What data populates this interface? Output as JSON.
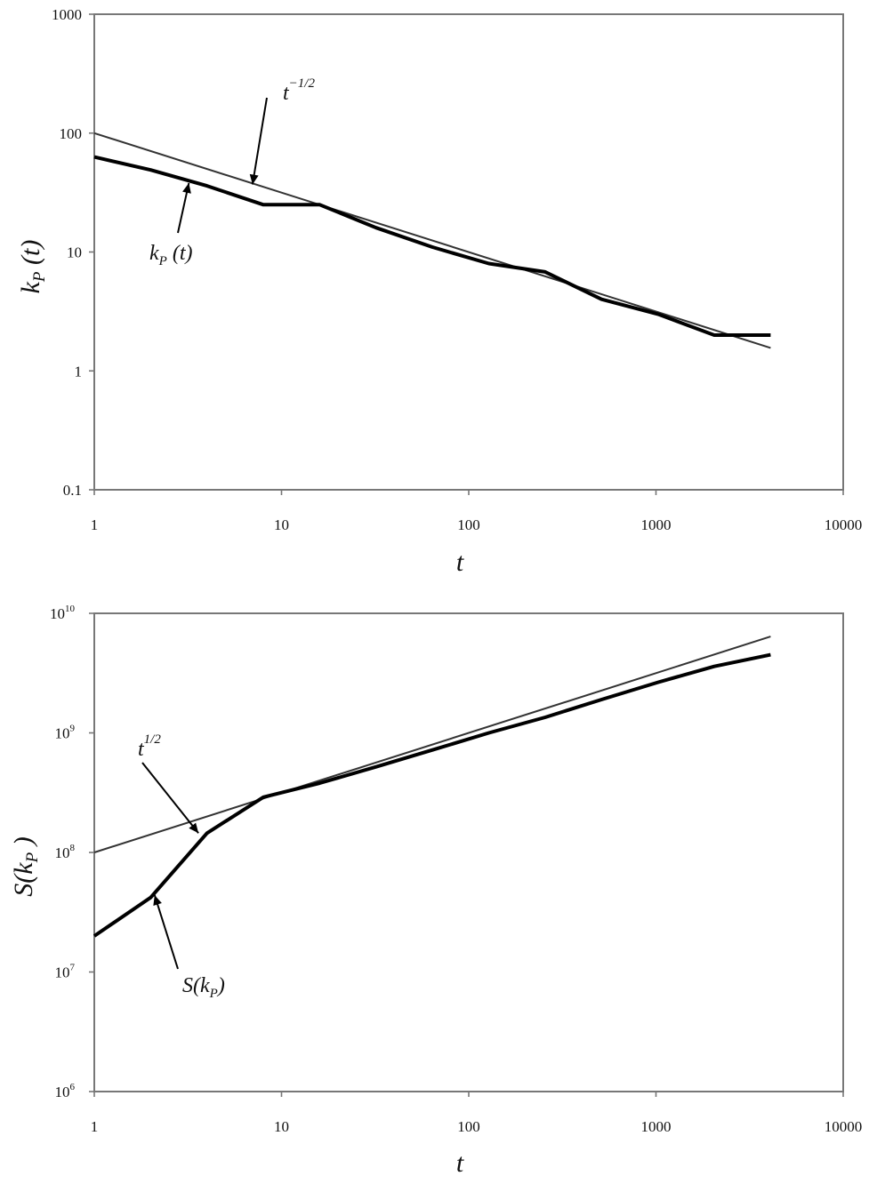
{
  "chart_data": [
    {
      "type": "line",
      "xlabel": "t",
      "ylabel": "kP (t)",
      "x_scale": "log",
      "y_scale": "log",
      "xlim": [
        1,
        10000
      ],
      "ylim": [
        0.1,
        1000
      ],
      "grid": false,
      "x_ticks": [
        "1",
        "10",
        "100",
        "1000",
        "10000"
      ],
      "y_ticks": [
        "0.1",
        "1",
        "10",
        "100",
        "1000"
      ],
      "series": [
        {
          "name": "t−1/2",
          "style": "thin",
          "x": [
            1,
            4096
          ],
          "y": [
            100,
            1.56
          ]
        },
        {
          "name": "kP (t)",
          "style": "thick",
          "x": [
            1,
            2,
            4,
            8,
            16,
            32,
            64,
            128,
            256,
            512,
            1024,
            2048,
            4096
          ],
          "y": [
            63,
            49,
            36,
            25,
            25,
            16,
            11,
            8,
            6.8,
            4,
            3,
            2,
            2
          ]
        }
      ],
      "annotations": [
        {
          "text": "t",
          "superscript": "−1/2",
          "target_x": 7,
          "target_y": 37
        },
        {
          "text": "k",
          "subscript": "P",
          "suffix": " (t)",
          "target_x": 3.2,
          "target_y": 38
        }
      ]
    },
    {
      "type": "line",
      "xlabel": "t",
      "ylabel": "S(kP )",
      "x_scale": "log",
      "y_scale": "log",
      "xlim": [
        1,
        10000
      ],
      "ylim": [
        1000000,
        10000000000
      ],
      "grid": false,
      "x_ticks": [
        "1",
        "10",
        "100",
        "1000",
        "10000"
      ],
      "y_ticks": [
        {
          "base": "10",
          "exp": "6"
        },
        {
          "base": "10",
          "exp": "7"
        },
        {
          "base": "10",
          "exp": "8"
        },
        {
          "base": "10",
          "exp": "9"
        },
        {
          "base": "10",
          "exp": "10"
        }
      ],
      "series": [
        {
          "name": "t1/2",
          "style": "thin",
          "x": [
            1,
            4096
          ],
          "y": [
            100000000,
            6400000000
          ]
        },
        {
          "name": "S(kP)",
          "style": "thick",
          "x": [
            1,
            2,
            4,
            8,
            16,
            32,
            64,
            128,
            256,
            512,
            1024,
            2048,
            4096
          ],
          "y": [
            20000000,
            42000000,
            145000000,
            290000000,
            380000000,
            520000000,
            720000000,
            1000000000,
            1350000000,
            1900000000,
            2650000000,
            3600000000,
            4500000000
          ]
        }
      ],
      "annotations": [
        {
          "text": "t",
          "superscript": "1/2",
          "target_x": 3.6,
          "target_y": 145000000
        },
        {
          "text": "S(k",
          "subscript": "P",
          "suffix": ")",
          "target_x": 2.1,
          "target_y": 44000000
        }
      ]
    }
  ]
}
